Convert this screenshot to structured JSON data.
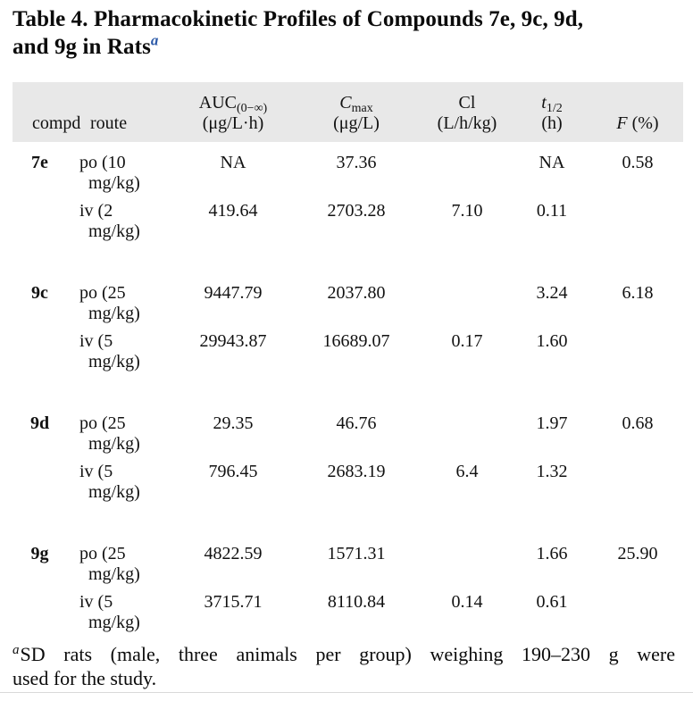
{
  "title": {
    "line1": "Table 4. Pharmacokinetic Profiles of Compounds 7e, 9c, 9d,",
    "line2": "and 9g in Rats",
    "superscript": "a",
    "superscript_color": "#2c5aa8"
  },
  "table": {
    "header_bg": "#e8e8e8",
    "header": {
      "compd": "compd",
      "route": "route",
      "auc_name": "AUC",
      "auc_sub": "(0−∞)",
      "auc_unit": "(μg/L·h)",
      "cmax_name": "C",
      "cmax_sub": "max",
      "cmax_unit": "(μg/L)",
      "cl_name": "Cl",
      "cl_unit": "(L/h/kg)",
      "t12_name": "t",
      "t12_sub": "1/2",
      "t12_unit": "(h)",
      "f_name": "F",
      "f_unit": "(%)"
    },
    "rows": [
      {
        "compd": "7e",
        "route1": "po (10",
        "route2": "mg/kg)",
        "auc": "NA",
        "cmax": "37.36",
        "cl": "",
        "thalf": "NA",
        "f": "0.58"
      },
      {
        "compd": "",
        "route1": "iv (2",
        "route2": "mg/kg)",
        "auc": "419.64",
        "cmax": "2703.28",
        "cl": "7.10",
        "thalf": "0.11",
        "f": ""
      },
      {
        "compd": "9c",
        "route1": "po (25",
        "route2": "mg/kg)",
        "auc": "9447.79",
        "cmax": "2037.80",
        "cl": "",
        "thalf": "3.24",
        "f": "6.18"
      },
      {
        "compd": "",
        "route1": "iv (5",
        "route2": "mg/kg)",
        "auc": "29943.87",
        "cmax": "16689.07",
        "cl": "0.17",
        "thalf": "1.60",
        "f": ""
      },
      {
        "compd": "9d",
        "route1": "po (25",
        "route2": "mg/kg)",
        "auc": "29.35",
        "cmax": "46.76",
        "cl": "",
        "thalf": "1.97",
        "f": "0.68"
      },
      {
        "compd": "",
        "route1": "iv (5",
        "route2": "mg/kg)",
        "auc": "796.45",
        "cmax": "2683.19",
        "cl": "6.4",
        "thalf": "1.32",
        "f": ""
      },
      {
        "compd": "9g",
        "route1": "po (25",
        "route2": "mg/kg)",
        "auc": "4822.59",
        "cmax": "1571.31",
        "cl": "",
        "thalf": "1.66",
        "f": "25.90"
      },
      {
        "compd": "",
        "route1": "iv (5",
        "route2": "mg/kg)",
        "auc": "3715.71",
        "cmax": "8110.84",
        "cl": "0.14",
        "thalf": "0.61",
        "f": ""
      }
    ]
  },
  "footnote": {
    "marker": "a",
    "line1": "SD rats (male, three animals per group) weighing 190–230 g were",
    "line2": "used for the study."
  }
}
